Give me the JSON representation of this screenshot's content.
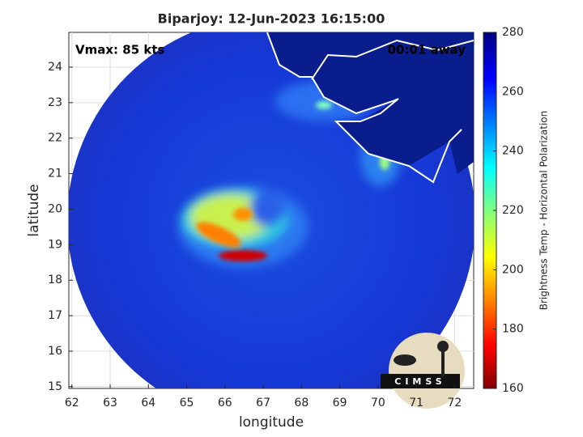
{
  "chart_data": {
    "type": "heatmap",
    "title": "Biparjoy: 12-Jun-2023 16:15:00",
    "x_label": "longitude",
    "y_label": "latitude",
    "xlim": [
      61.92,
      72.5
    ],
    "xticks": [
      62,
      63,
      64,
      65,
      66,
      67,
      68,
      69,
      70,
      71,
      72
    ],
    "ylim": [
      14.95,
      24.98
    ],
    "yticks": [
      15,
      16,
      17,
      18,
      19,
      20,
      21,
      22,
      23,
      24
    ],
    "grid": true,
    "colorbar": {
      "label": "Brightness Temp - Horizontal Polarization",
      "clim": [
        160,
        280
      ],
      "ticks": [
        160,
        180,
        200,
        220,
        240,
        260,
        280
      ],
      "colormap": "jet"
    },
    "annotations": [
      "Vmax: 85 kts",
      "00:01 away"
    ],
    "logo": "CIMSS"
  }
}
